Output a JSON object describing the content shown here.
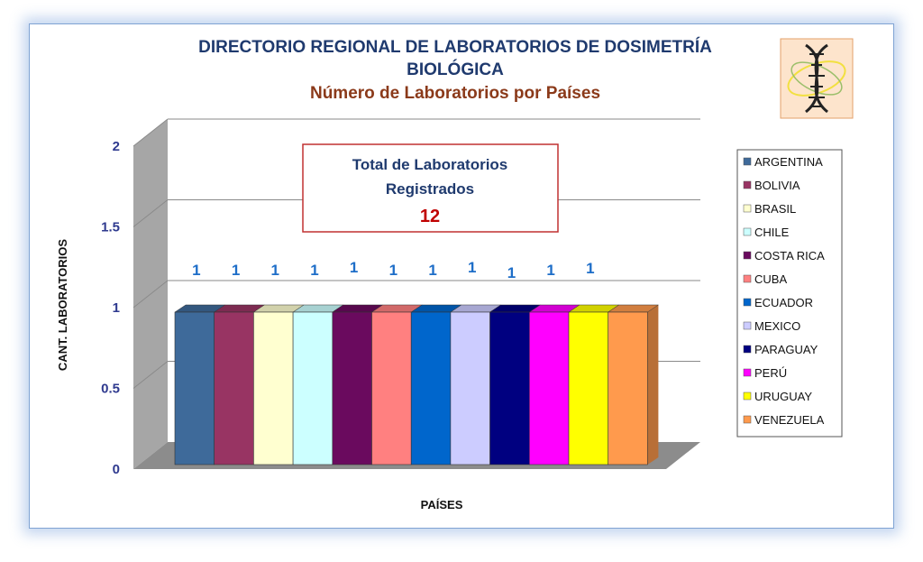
{
  "colors": {
    "title": "#1f3a6e",
    "subtitle": "#8b3a1a",
    "tick": "#2f3a8f",
    "data_label": "#1e6ec8",
    "total_value": "#c00000"
  },
  "logo": {
    "icon": "dna-icon"
  },
  "total_box": {
    "title_line1": "Total de Laboratorios",
    "title_line2": "Registrados",
    "value": "12"
  },
  "chart_data": {
    "type": "bar",
    "title_line1": "DIRECTORIO REGIONAL DE LABORATORIOS DE DOSIMETRÍA",
    "title_line2": "BIOLÓGICA",
    "subtitle": "Número de Laboratorios por Países",
    "xlabel": "PAÍSES",
    "ylabel": "CANT. LABORATORIOS",
    "ylim": [
      0,
      2
    ],
    "yticks": [
      "0",
      "0.5",
      "1",
      "1.5",
      "2"
    ],
    "grid": true,
    "legend_position": "right",
    "categories": [
      "ARGENTINA",
      "BOLIVIA",
      "BRASIL",
      "CHILE",
      "COSTA RICA",
      "CUBA",
      "ECUADOR",
      "MEXICO",
      "PARAGUAY",
      "PERÚ",
      "URUGUAY",
      "VENEZUELA"
    ],
    "values": [
      1,
      1,
      1,
      1,
      1,
      1,
      1,
      1,
      1,
      1,
      1,
      1
    ],
    "data_labels": [
      "1",
      "1",
      "1",
      "1",
      "1",
      "1",
      "1",
      "1",
      "1",
      "1",
      "1",
      ""
    ],
    "bar_colors": [
      "#3e6a9a",
      "#983463",
      "#ffffd0",
      "#ccffff",
      "#6a0a5e",
      "#ff8080",
      "#0066cc",
      "#ccccff",
      "#000080",
      "#ff00ff",
      "#ffff00",
      "#ff9a4d"
    ]
  }
}
